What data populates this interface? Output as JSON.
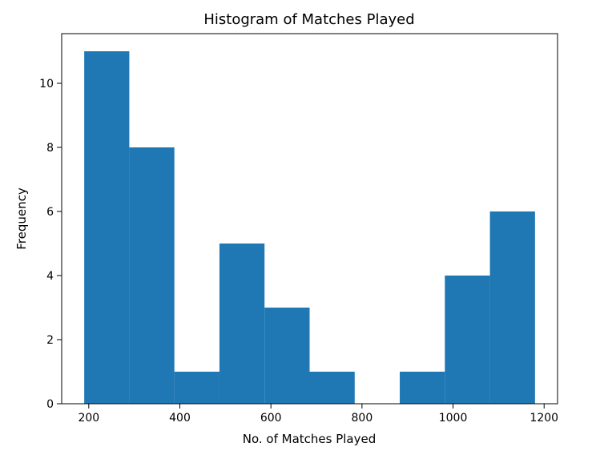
{
  "chart_data": {
    "type": "bar",
    "title": "Histogram of Matches Played",
    "xlabel": "No. of Matches Played",
    "ylabel": "Frequency",
    "bin_edges": [
      190,
      289,
      388,
      487,
      586,
      685,
      784,
      883,
      982,
      1081,
      1180
    ],
    "values": [
      11,
      8,
      1,
      5,
      3,
      1,
      0,
      1,
      4,
      6
    ],
    "xlim": [
      140.5,
      1229.5
    ],
    "ylim": [
      0,
      11.55
    ],
    "x_ticks": [
      200,
      400,
      600,
      800,
      1000,
      1200
    ],
    "y_ticks": [
      0,
      2,
      4,
      6,
      8,
      10
    ],
    "bar_color": "#1f77b4",
    "grid": false,
    "legend": "none"
  }
}
